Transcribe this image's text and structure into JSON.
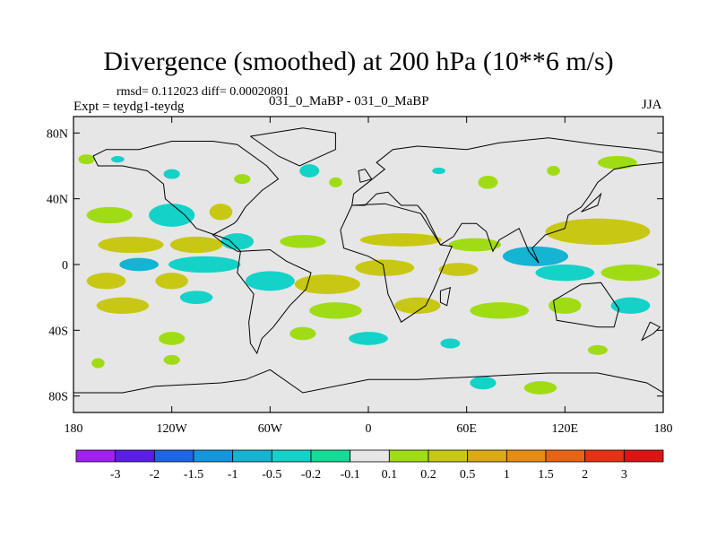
{
  "chart_data": {
    "type": "heatmap",
    "title": "Divergence (smoothed) at 200 hPa (10**6 m/s)",
    "stats_text": "rmsd= 0.112023 diff= 0.00020801",
    "expt_text": "Expt = teydg1-teydg",
    "cases_text": "031_0_MaBP - 031_0_MaBP",
    "season": "JJA",
    "x_ticks": [
      {
        "value": -180,
        "label": "180"
      },
      {
        "value": -120,
        "label": "120W"
      },
      {
        "value": -60,
        "label": "60W"
      },
      {
        "value": 0,
        "label": "0"
      },
      {
        "value": 60,
        "label": "60E"
      },
      {
        "value": 120,
        "label": "120E"
      },
      {
        "value": 180,
        "label": "180"
      }
    ],
    "y_ticks": [
      {
        "value": 80,
        "label": "80N"
      },
      {
        "value": 40,
        "label": "40N"
      },
      {
        "value": 0,
        "label": "0"
      },
      {
        "value": -40,
        "label": "40S"
      },
      {
        "value": -80,
        "label": "80S"
      }
    ],
    "xlim": [
      -180,
      180
    ],
    "ylim": [
      -90,
      90
    ],
    "background_color": "#e6e6e6",
    "colorbar": {
      "levels": [
        "-3",
        "-2",
        "-1.5",
        "-1",
        "-0.5",
        "-0.2",
        "-0.1",
        "0.1",
        "0.2",
        "0.5",
        "1",
        "1.5",
        "2",
        "3"
      ],
      "colors": [
        "#a020f0",
        "#5a1ee6",
        "#1e64e6",
        "#1496dc",
        "#14b4d2",
        "#14d2c8",
        "#14dc96",
        "#e6e6e6",
        "#a0dc14",
        "#c8c814",
        "#dcaa14",
        "#e68c14",
        "#e66414",
        "#e63214",
        "#dc1414"
      ]
    },
    "blobs": [
      {
        "lon": -172,
        "lat": 64,
        "rlon": 5,
        "rlat": 3,
        "level": "0.1"
      },
      {
        "lon": -153,
        "lat": 64,
        "rlon": 4,
        "rlat": 2,
        "level": "-0.2"
      },
      {
        "lon": -120,
        "lat": 55,
        "rlon": 5,
        "rlat": 3,
        "level": "-0.2"
      },
      {
        "lon": -77,
        "lat": 52,
        "rlon": 5,
        "rlat": 3,
        "level": "0.1"
      },
      {
        "lon": -36,
        "lat": 57,
        "rlon": 6,
        "rlat": 4,
        "level": "-0.2"
      },
      {
        "lon": -20,
        "lat": 50,
        "rlon": 4,
        "rlat": 3,
        "level": "0.1"
      },
      {
        "lon": 43,
        "lat": 57,
        "rlon": 4,
        "rlat": 2,
        "level": "-0.2"
      },
      {
        "lon": 73,
        "lat": 50,
        "rlon": 6,
        "rlat": 4,
        "level": "0.1"
      },
      {
        "lon": 113,
        "lat": 57,
        "rlon": 4,
        "rlat": 3,
        "level": "0.1"
      },
      {
        "lon": 152,
        "lat": 62,
        "rlon": 12,
        "rlat": 4,
        "level": "0.1"
      },
      {
        "lon": -158,
        "lat": 30,
        "rlon": 14,
        "rlat": 5,
        "level": "0.1"
      },
      {
        "lon": -120,
        "lat": 30,
        "rlon": 14,
        "rlat": 7,
        "level": "-0.2"
      },
      {
        "lon": -90,
        "lat": 32,
        "rlon": 7,
        "rlat": 5,
        "level": "0.2"
      },
      {
        "lon": -145,
        "lat": 12,
        "rlon": 20,
        "rlat": 5,
        "level": "0.2"
      },
      {
        "lon": -105,
        "lat": 12,
        "rlon": 16,
        "rlat": 5,
        "level": "0.2"
      },
      {
        "lon": -80,
        "lat": 14,
        "rlon": 10,
        "rlat": 5,
        "level": "-0.2"
      },
      {
        "lon": -40,
        "lat": 14,
        "rlon": 14,
        "rlat": 4,
        "level": "0.1"
      },
      {
        "lon": 20,
        "lat": 15,
        "rlon": 25,
        "rlat": 4,
        "level": "0.2"
      },
      {
        "lon": 65,
        "lat": 12,
        "rlon": 16,
        "rlat": 4,
        "level": "0.1"
      },
      {
        "lon": 140,
        "lat": 20,
        "rlon": 32,
        "rlat": 8,
        "level": "0.2"
      },
      {
        "lon": -140,
        "lat": 0,
        "rlon": 12,
        "rlat": 4,
        "level": "-0.5"
      },
      {
        "lon": -100,
        "lat": 0,
        "rlon": 22,
        "rlat": 5,
        "level": "-0.2"
      },
      {
        "lon": -160,
        "lat": -10,
        "rlon": 12,
        "rlat": 5,
        "level": "0.2"
      },
      {
        "lon": -120,
        "lat": -10,
        "rlon": 10,
        "rlat": 5,
        "level": "0.2"
      },
      {
        "lon": -60,
        "lat": -10,
        "rlon": 15,
        "rlat": 6,
        "level": "-0.2"
      },
      {
        "lon": -25,
        "lat": -12,
        "rlon": 20,
        "rlat": 6,
        "level": "0.2"
      },
      {
        "lon": 10,
        "lat": -2,
        "rlon": 18,
        "rlat": 5,
        "level": "0.2"
      },
      {
        "lon": 55,
        "lat": -3,
        "rlon": 12,
        "rlat": 4,
        "level": "0.2"
      },
      {
        "lon": 102,
        "lat": 5,
        "rlon": 20,
        "rlat": 6,
        "level": "-0.5"
      },
      {
        "lon": 120,
        "lat": -5,
        "rlon": 18,
        "rlat": 5,
        "level": "-0.2"
      },
      {
        "lon": 160,
        "lat": -5,
        "rlon": 18,
        "rlat": 5,
        "level": "0.1"
      },
      {
        "lon": -150,
        "lat": -25,
        "rlon": 16,
        "rlat": 5,
        "level": "0.2"
      },
      {
        "lon": -105,
        "lat": -20,
        "rlon": 10,
        "rlat": 4,
        "level": "-0.2"
      },
      {
        "lon": -20,
        "lat": -28,
        "rlon": 16,
        "rlat": 5,
        "level": "0.1"
      },
      {
        "lon": 30,
        "lat": -25,
        "rlon": 14,
        "rlat": 5,
        "level": "0.2"
      },
      {
        "lon": 80,
        "lat": -28,
        "rlon": 18,
        "rlat": 5,
        "level": "0.1"
      },
      {
        "lon": 120,
        "lat": -25,
        "rlon": 10,
        "rlat": 5,
        "level": "0.1"
      },
      {
        "lon": 160,
        "lat": -25,
        "rlon": 12,
        "rlat": 5,
        "level": "-0.2"
      },
      {
        "lon": -120,
        "lat": -45,
        "rlon": 8,
        "rlat": 4,
        "level": "0.1"
      },
      {
        "lon": -40,
        "lat": -42,
        "rlon": 8,
        "rlat": 4,
        "level": "0.1"
      },
      {
        "lon": 0,
        "lat": -45,
        "rlon": 12,
        "rlat": 4,
        "level": "-0.2"
      },
      {
        "lon": 50,
        "lat": -48,
        "rlon": 6,
        "rlat": 3,
        "level": "-0.2"
      },
      {
        "lon": 140,
        "lat": -52,
        "rlon": 6,
        "rlat": 3,
        "level": "0.1"
      },
      {
        "lon": -165,
        "lat": -60,
        "rlon": 4,
        "rlat": 3,
        "level": "0.1"
      },
      {
        "lon": -120,
        "lat": -58,
        "rlon": 5,
        "rlat": 3,
        "level": "0.1"
      },
      {
        "lon": 70,
        "lat": -72,
        "rlon": 8,
        "rlat": 4,
        "level": "-0.2"
      },
      {
        "lon": 105,
        "lat": -75,
        "rlon": 10,
        "rlat": 4,
        "level": "0.1"
      }
    ],
    "coastlines": [
      {
        "name": "north-america",
        "points": [
          [
            -168,
            66
          ],
          [
            -160,
            70
          ],
          [
            -140,
            70
          ],
          [
            -120,
            75
          ],
          [
            -95,
            75
          ],
          [
            -80,
            73
          ],
          [
            -62,
            60
          ],
          [
            -55,
            52
          ],
          [
            -65,
            45
          ],
          [
            -75,
            35
          ],
          [
            -80,
            27
          ],
          [
            -82,
            25
          ],
          [
            -95,
            18
          ],
          [
            -90,
            14
          ],
          [
            -80,
            8
          ],
          [
            -78,
            8
          ],
          [
            -85,
            15
          ],
          [
            -105,
            22
          ],
          [
            -112,
            30
          ],
          [
            -124,
            40
          ],
          [
            -125,
            49
          ],
          [
            -135,
            57
          ],
          [
            -150,
            60
          ],
          [
            -165,
            60
          ],
          [
            -168,
            66
          ]
        ]
      },
      {
        "name": "south-america",
        "points": [
          [
            -78,
            8
          ],
          [
            -60,
            9
          ],
          [
            -50,
            2
          ],
          [
            -35,
            -5
          ],
          [
            -38,
            -15
          ],
          [
            -48,
            -25
          ],
          [
            -58,
            -38
          ],
          [
            -65,
            -45
          ],
          [
            -68,
            -54
          ],
          [
            -72,
            -48
          ],
          [
            -73,
            -35
          ],
          [
            -70,
            -18
          ],
          [
            -80,
            -5
          ],
          [
            -78,
            8
          ]
        ]
      },
      {
        "name": "greenland",
        "points": [
          [
            -72,
            78
          ],
          [
            -40,
            83
          ],
          [
            -20,
            80
          ],
          [
            -20,
            70
          ],
          [
            -42,
            60
          ],
          [
            -55,
            66
          ],
          [
            -72,
            78
          ]
        ]
      },
      {
        "name": "eurasia",
        "points": [
          [
            -10,
            36
          ],
          [
            -9,
            43
          ],
          [
            0,
            50
          ],
          [
            5,
            54
          ],
          [
            10,
            58
          ],
          [
            5,
            62
          ],
          [
            15,
            70
          ],
          [
            30,
            72
          ],
          [
            60,
            70
          ],
          [
            80,
            74
          ],
          [
            110,
            77
          ],
          [
            140,
            73
          ],
          [
            170,
            70
          ],
          [
            180,
            68
          ],
          [
            180,
            62
          ],
          [
            160,
            60
          ],
          [
            150,
            58
          ],
          [
            140,
            50
          ],
          [
            135,
            42
          ],
          [
            130,
            35
          ],
          [
            122,
            30
          ],
          [
            120,
            22
          ],
          [
            108,
            18
          ],
          [
            100,
            10
          ],
          [
            104,
            1
          ],
          [
            98,
            8
          ],
          [
            92,
            22
          ],
          [
            80,
            15
          ],
          [
            76,
            8
          ],
          [
            72,
            20
          ],
          [
            66,
            25
          ],
          [
            57,
            25
          ],
          [
            52,
            17
          ],
          [
            44,
            12
          ],
          [
            35,
            30
          ],
          [
            30,
            36
          ],
          [
            20,
            36
          ],
          [
            12,
            44
          ],
          [
            5,
            43
          ],
          [
            -2,
            36
          ],
          [
            -10,
            36
          ]
        ]
      },
      {
        "name": "africa",
        "points": [
          [
            -17,
            21
          ],
          [
            -10,
            36
          ],
          [
            10,
            37
          ],
          [
            32,
            31
          ],
          [
            44,
            12
          ],
          [
            51,
            11
          ],
          [
            40,
            -15
          ],
          [
            35,
            -25
          ],
          [
            20,
            -35
          ],
          [
            12,
            -18
          ],
          [
            9,
            0
          ],
          [
            0,
            5
          ],
          [
            -15,
            10
          ],
          [
            -17,
            21
          ]
        ]
      },
      {
        "name": "madagascar",
        "points": [
          [
            44,
            -16
          ],
          [
            50,
            -14
          ],
          [
            48,
            -25
          ],
          [
            44,
            -23
          ],
          [
            44,
            -16
          ]
        ]
      },
      {
        "name": "australia",
        "points": [
          [
            113,
            -22
          ],
          [
            130,
            -12
          ],
          [
            142,
            -11
          ],
          [
            153,
            -27
          ],
          [
            150,
            -38
          ],
          [
            140,
            -38
          ],
          [
            115,
            -34
          ],
          [
            113,
            -22
          ]
        ]
      },
      {
        "name": "antarctica",
        "points": [
          [
            -180,
            -78
          ],
          [
            -150,
            -78
          ],
          [
            -130,
            -74
          ],
          [
            -90,
            -72
          ],
          [
            -75,
            -70
          ],
          [
            -60,
            -64
          ],
          [
            -40,
            -78
          ],
          [
            0,
            -70
          ],
          [
            30,
            -70
          ],
          [
            70,
            -68
          ],
          [
            110,
            -66
          ],
          [
            140,
            -66
          ],
          [
            170,
            -72
          ],
          [
            180,
            -78
          ]
        ]
      },
      {
        "name": "new-zealand",
        "points": [
          [
            172,
            -35
          ],
          [
            178,
            -38
          ],
          [
            174,
            -42
          ],
          [
            167,
            -46
          ],
          [
            172,
            -35
          ]
        ]
      },
      {
        "name": "japan",
        "points": [
          [
            130,
            32
          ],
          [
            140,
            36
          ],
          [
            142,
            43
          ],
          [
            140,
            41
          ],
          [
            130,
            32
          ]
        ]
      },
      {
        "name": "uk",
        "points": [
          [
            -5,
            50
          ],
          [
            2,
            52
          ],
          [
            -2,
            58
          ],
          [
            -6,
            57
          ],
          [
            -5,
            50
          ]
        ]
      }
    ]
  }
}
